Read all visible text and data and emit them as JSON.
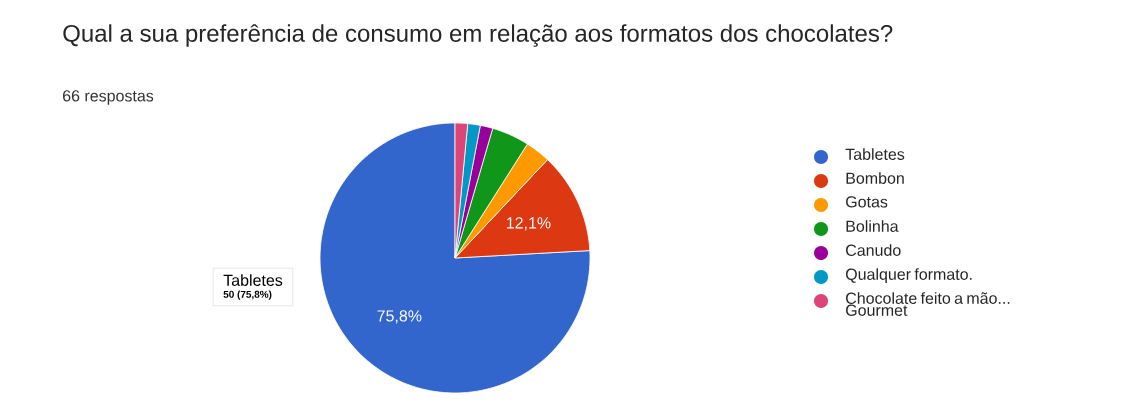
{
  "chart_data": {
    "type": "pie",
    "title": "Qual a sua preferência de consumo em relação aos formatos dos chocolates?",
    "subtitle": "66 respostas",
    "categories": [
      "Tabletes",
      "Bombon",
      "Gotas",
      "Bolinha",
      "Canudo",
      "Qualquer formato.",
      "Chocolate feito a mão... Gourmet"
    ],
    "values": [
      75.8,
      12.1,
      3.0,
      4.5,
      1.5,
      1.5,
      1.5
    ],
    "colors": [
      "#3366cc",
      "#dc3912",
      "#ff9900",
      "#109618",
      "#990099",
      "#0099c6",
      "#dd4477"
    ],
    "value_labels": [
      "75,8%",
      "12,1%",
      null,
      null,
      null,
      null,
      null
    ],
    "annotations": [
      "Tabletes",
      "50 (75,8%)"
    ],
    "legend": "right"
  }
}
